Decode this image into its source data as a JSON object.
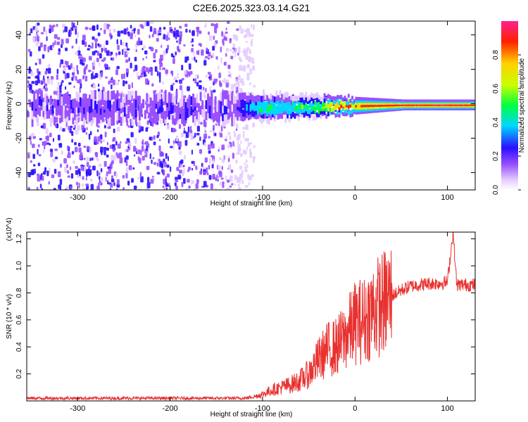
{
  "title": "C2E6.2025.323.03.14.G21",
  "chart_data": [
    {
      "type": "heatmap",
      "xlabel": "Height of straight line (km)",
      "ylabel": "Frequency (Hz)",
      "xlim": [
        -355,
        130
      ],
      "ylim": [
        -50,
        48
      ],
      "xticks": [
        -300,
        -200,
        -100,
        0,
        100
      ],
      "yticks": [
        -40,
        -20,
        0,
        20,
        40
      ],
      "colorbar": {
        "label": "Normalized spectral amplitude",
        "range": [
          0.0,
          1.0
        ],
        "ticks": [
          0.0,
          0.2,
          0.4,
          0.6,
          0.8
        ],
        "tick_labels": [
          "0.0",
          "0.2",
          "0.4",
          "0.6",
          "0.8"
        ]
      },
      "ridge": [
        {
          "x": -130,
          "amp": 0.15
        },
        {
          "x": -115,
          "amp": 0.3
        },
        {
          "x": -100,
          "amp": 0.45
        },
        {
          "x": -80,
          "amp": 0.4
        },
        {
          "x": -60,
          "amp": 0.5
        },
        {
          "x": -40,
          "amp": 0.55
        },
        {
          "x": -25,
          "amp": 0.8
        },
        {
          "x": 0,
          "amp": 0.85
        },
        {
          "x": 50,
          "amp": 0.95
        },
        {
          "x": 130,
          "amp": 0.95
        }
      ],
      "noise_extent_x": [
        -355,
        -110
      ]
    },
    {
      "type": "line",
      "xlabel": "Height of straight line (km)",
      "ylabel": "SNR (10 * v/v)",
      "y_multiplier": "(x10^4)",
      "xlim": [
        -355,
        130
      ],
      "ylim": [
        0,
        1.25
      ],
      "xticks": [
        -300,
        -200,
        -100,
        0,
        100
      ],
      "yticks": [
        0.2,
        0.4,
        0.6,
        0.8,
        1.0,
        1.2
      ],
      "ytick_labels": [
        "0.2",
        "0.4",
        "0.6",
        "0.8",
        "1.0",
        "1.2"
      ],
      "series": [
        {
          "color": "#e8312f",
          "x": [
            -355,
            -300,
            -250,
            -200,
            -150,
            -120,
            -110,
            -100,
            -90,
            -80,
            -70,
            -60,
            -50,
            -40,
            -30,
            -20,
            -10,
            0,
            10,
            20,
            30,
            40,
            50,
            60,
            70,
            80,
            90,
            100,
            106,
            110,
            120,
            130
          ],
          "y": [
            0.02,
            0.02,
            0.02,
            0.02,
            0.02,
            0.02,
            0.03,
            0.05,
            0.08,
            0.1,
            0.12,
            0.15,
            0.2,
            0.3,
            0.38,
            0.4,
            0.48,
            0.58,
            0.6,
            0.68,
            0.72,
            0.78,
            0.82,
            0.85,
            0.86,
            0.87,
            0.87,
            0.88,
            1.25,
            0.86,
            0.86,
            0.86
          ]
        }
      ]
    }
  ]
}
